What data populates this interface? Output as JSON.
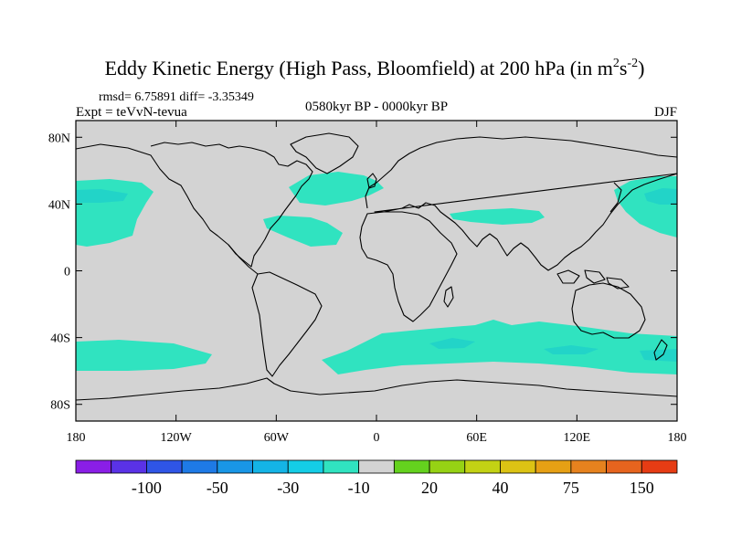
{
  "title": "Eddy Kinetic Energy (High Pass, Bloomfield) at 200 hPa (in m",
  "title_unit_sup1": "2",
  "title_unit_s": "s",
  "title_unit_sup2": "-2",
  "title_close": ")",
  "stats": "rmsd= 6.75891 diff= -3.35349",
  "experiment": "Expt = teVvN-tevua",
  "period": "0580kyr BP - 0000kyr BP",
  "season": "DJF",
  "map": {
    "projection": "cylindrical equidistant",
    "lon_range": [
      -180,
      180
    ],
    "lat_range": [
      -90,
      90
    ],
    "land_color": "#d3d3d3",
    "anomaly_color": "#30e3c0",
    "strong_anomaly_color": "#22d4c8",
    "x_ticks": [
      {
        "lon": -180,
        "label": "180"
      },
      {
        "lon": -120,
        "label": "120W"
      },
      {
        "lon": -60,
        "label": "60W"
      },
      {
        "lon": 0,
        "label": "0"
      },
      {
        "lon": 60,
        "label": "60E"
      },
      {
        "lon": 120,
        "label": "120E"
      },
      {
        "lon": 180,
        "label": "180"
      }
    ],
    "y_ticks": [
      {
        "lat": 80,
        "label": "80N"
      },
      {
        "lat": 40,
        "label": "40N"
      },
      {
        "lat": 0,
        "label": "0"
      },
      {
        "lat": -40,
        "label": "40S"
      },
      {
        "lat": -80,
        "label": "80S"
      }
    ]
  },
  "colorbar": {
    "colors": [
      "#8a1ee6",
      "#5a32e6",
      "#2f55e6",
      "#1e7ae6",
      "#1996e6",
      "#14b4e6",
      "#14cde6",
      "#30e3c0",
      "#d3d3d3",
      "#64d21e",
      "#96d214",
      "#c3d214",
      "#dcc314",
      "#e6a014",
      "#e6821e",
      "#e6641e",
      "#e63c14"
    ],
    "labels": [
      {
        "after_box": 2,
        "text": "-100"
      },
      {
        "after_box": 4,
        "text": "-50"
      },
      {
        "after_box": 6,
        "text": "-30"
      },
      {
        "after_box": 8,
        "text": "-10"
      },
      {
        "after_box": 10,
        "text": "20"
      },
      {
        "after_box": 12,
        "text": "40"
      },
      {
        "after_box": 14,
        "text": "75"
      },
      {
        "after_box": 16,
        "text": "150"
      }
    ]
  }
}
